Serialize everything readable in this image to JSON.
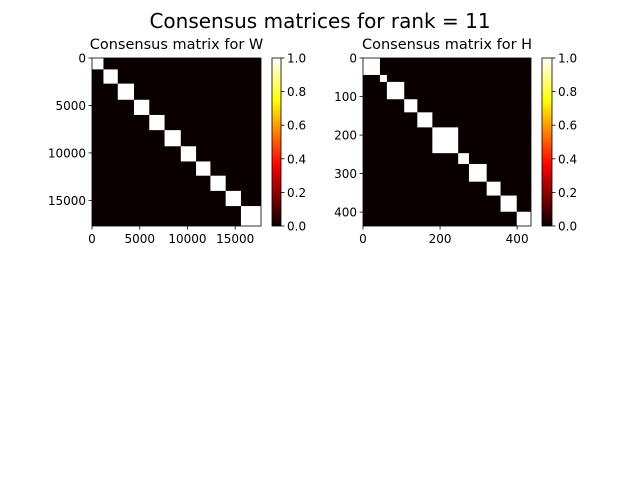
{
  "figure": {
    "suptitle": "Consensus matrices for rank = 11"
  },
  "colormap": {
    "name": "hot",
    "stops": [
      "#0b0000",
      "#ff0000",
      "#ffff00",
      "#ffffff"
    ]
  },
  "chart_data": [
    {
      "type": "heatmap",
      "title": "Consensus matrix for W",
      "matrix_size": 17700,
      "block_boundaries": [
        0,
        1200,
        2700,
        4400,
        6000,
        7600,
        9300,
        10900,
        12400,
        14000,
        15600,
        17700
      ],
      "values": "block-diagonal: 1.0 inside each diagonal block, 0.0 elsewhere",
      "xticks": [
        0,
        5000,
        10000,
        15000
      ],
      "xtick_labels": [
        "0",
        "5000",
        "10000",
        "15000"
      ],
      "yticks": [
        0,
        5000,
        10000,
        15000
      ],
      "ytick_labels": [
        "0",
        "5000",
        "10000",
        "15000"
      ],
      "colorbar": {
        "range": [
          0.0,
          1.0
        ],
        "ticks": [
          0.0,
          0.2,
          0.4,
          0.6,
          0.8,
          1.0
        ],
        "tick_labels": [
          "0.0",
          "0.2",
          "0.4",
          "0.6",
          "0.8",
          "1.0"
        ]
      }
    },
    {
      "type": "heatmap",
      "title": "Consensus matrix for H",
      "matrix_size": 436,
      "block_boundaries": [
        0,
        44,
        62,
        107,
        141,
        180,
        247,
        275,
        321,
        357,
        399,
        436
      ],
      "values": "block-diagonal: 1.0 inside each diagonal block, 0.0 elsewhere",
      "xticks": [
        0,
        200,
        400
      ],
      "xtick_labels": [
        "0",
        "200",
        "400"
      ],
      "yticks": [
        0,
        100,
        200,
        300,
        400
      ],
      "ytick_labels": [
        "0",
        "100",
        "200",
        "300",
        "400"
      ],
      "colorbar": {
        "range": [
          0.0,
          1.0
        ],
        "ticks": [
          0.0,
          0.2,
          0.4,
          0.6,
          0.8,
          1.0
        ],
        "tick_labels": [
          "0.0",
          "0.2",
          "0.4",
          "0.6",
          "0.8",
          "1.0"
        ]
      }
    }
  ]
}
